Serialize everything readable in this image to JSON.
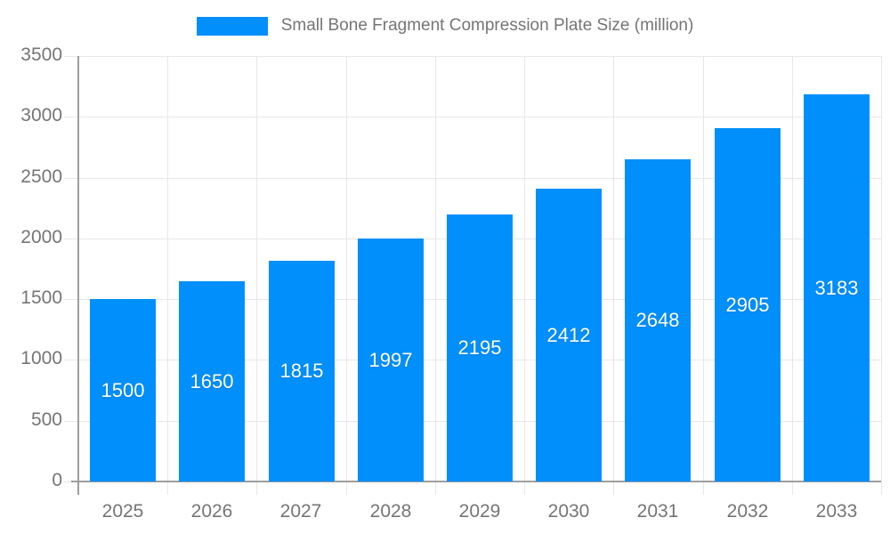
{
  "legend": {
    "label": "Small Bone Fragment Compression Plate Size (million)",
    "swatch_color": "#008FFB"
  },
  "chart_data": {
    "type": "bar",
    "title": "Small Bone Fragment Compression Plate Size (million)",
    "categories": [
      "2025",
      "2026",
      "2027",
      "2028",
      "2029",
      "2030",
      "2031",
      "2032",
      "2033"
    ],
    "values": [
      1500,
      1650,
      1815,
      1997,
      2195,
      2412,
      2648,
      2905,
      3183
    ],
    "series": [
      {
        "name": "Small Bone Fragment Compression Plate Size (million)",
        "values": [
          1500,
          1650,
          1815,
          1997,
          2195,
          2412,
          2648,
          2905,
          3183
        ]
      }
    ],
    "xlabel": "",
    "ylabel": "",
    "ylim": [
      0,
      3500
    ],
    "yticks": [
      0,
      500,
      1000,
      1500,
      2000,
      2500,
      3000,
      3500
    ],
    "grid": true,
    "legend_position": "top",
    "value_labels_position": "inside-center",
    "colors": {
      "bar": "#008FFB",
      "grid": "#e7e7e7",
      "axis_line": "#9e9e9e",
      "axis_label": "#757575",
      "value_label": "#ffffff"
    }
  }
}
